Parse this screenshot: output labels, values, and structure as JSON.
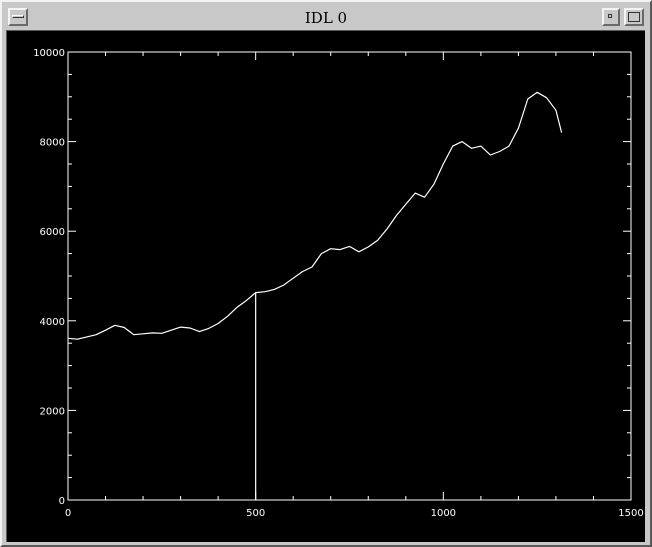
{
  "window": {
    "title": "IDL 0",
    "colors": {
      "frame": "#c8c8c8",
      "plot_background": "#000000",
      "plot_foreground": "#ffffff"
    },
    "icons": {
      "menu": "window-menu-icon",
      "minimize": "minimize-icon",
      "maximize": "maximize-icon"
    }
  },
  "chart_data": {
    "type": "line",
    "title": "",
    "xlabel": "",
    "ylabel": "",
    "xlim": [
      0,
      1500
    ],
    "ylim": [
      0,
      10000
    ],
    "x_ticks": [
      0,
      500,
      1000,
      1500
    ],
    "y_ticks": [
      0,
      2000,
      4000,
      6000,
      8000,
      10000
    ],
    "x_tick_labels": [
      "0",
      "500",
      "1000",
      "1500"
    ],
    "y_tick_labels": [
      "0",
      "2000",
      "4000",
      "6000",
      "8000",
      "10000"
    ],
    "grid": false,
    "series": [
      {
        "values": [
          [
            0,
            3610
          ],
          [
            25,
            3590
          ],
          [
            50,
            3640
          ],
          [
            75,
            3690
          ],
          [
            100,
            3790
          ],
          [
            125,
            3900
          ],
          [
            150,
            3850
          ],
          [
            175,
            3690
          ],
          [
            200,
            3710
          ],
          [
            225,
            3730
          ],
          [
            250,
            3720
          ],
          [
            275,
            3790
          ],
          [
            300,
            3860
          ],
          [
            325,
            3840
          ],
          [
            350,
            3760
          ],
          [
            375,
            3830
          ],
          [
            400,
            3940
          ],
          [
            425,
            4100
          ],
          [
            450,
            4300
          ],
          [
            475,
            4450
          ],
          [
            500,
            4630
          ],
          [
            525,
            4650
          ],
          [
            550,
            4700
          ],
          [
            575,
            4800
          ],
          [
            600,
            4950
          ],
          [
            625,
            5100
          ],
          [
            650,
            5200
          ],
          [
            675,
            5500
          ],
          [
            700,
            5610
          ],
          [
            725,
            5590
          ],
          [
            750,
            5660
          ],
          [
            775,
            5540
          ],
          [
            800,
            5650
          ],
          [
            825,
            5800
          ],
          [
            850,
            6050
          ],
          [
            875,
            6350
          ],
          [
            900,
            6600
          ],
          [
            925,
            6850
          ],
          [
            950,
            6760
          ],
          [
            975,
            7050
          ],
          [
            1000,
            7500
          ],
          [
            1025,
            7900
          ],
          [
            1050,
            8000
          ],
          [
            1075,
            7850
          ],
          [
            1100,
            7900
          ],
          [
            1125,
            7700
          ],
          [
            1150,
            7780
          ],
          [
            1175,
            7900
          ],
          [
            1200,
            8300
          ],
          [
            1225,
            8950
          ],
          [
            1250,
            9100
          ],
          [
            1275,
            8980
          ],
          [
            1300,
            8700
          ],
          [
            1315,
            8200
          ]
        ]
      }
    ],
    "marker_line": {
      "x": 500,
      "y_from": 0,
      "y_to": 4630
    }
  }
}
